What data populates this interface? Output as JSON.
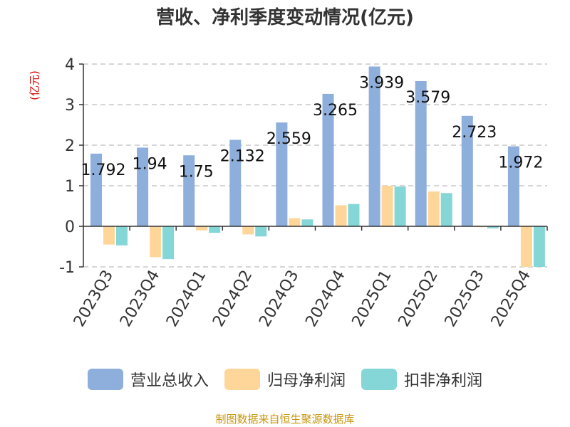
{
  "chart_title": "营收、净利季度变动情况(亿元)",
  "unit_label": "(亿元)",
  "source_note": "制图数据来自恒生聚源数据库",
  "colors": {
    "revenue": "#8eaedc",
    "parent_net_profit": "#ffd699",
    "deducted_net_profit": "#85d6d6",
    "grid": "#c8c8c8",
    "axis": "#333333"
  },
  "legend": [
    {
      "label": "营业总收入",
      "color": "#8eaedc"
    },
    {
      "label": "归母净利润",
      "color": "#ffd699"
    },
    {
      "label": "扣非净利润",
      "color": "#85d6d6"
    }
  ],
  "chart_data": {
    "type": "bar",
    "title": "营收、净利季度变动情况(亿元)",
    "ylabel": "(亿元)",
    "ylim": [
      -1,
      4
    ],
    "yticks": [
      4,
      3,
      2,
      1,
      0,
      -1
    ],
    "grid": true,
    "legend_position": "bottom",
    "categories": [
      "2023Q3",
      "2023Q4",
      "2024Q1",
      "2024Q2",
      "2024Q3",
      "2024Q4",
      "2025Q1",
      "2025Q2",
      "2025Q3",
      "2025Q4"
    ],
    "series": [
      {
        "name": "营业总收入",
        "values": [
          1.792,
          1.94,
          1.75,
          2.132,
          2.559,
          3.265,
          3.939,
          3.579,
          2.723,
          1.972
        ],
        "labels": [
          "1.792",
          "1.94",
          "1.75",
          "2.132",
          "2.559",
          "3.265",
          "3.939",
          "3.579",
          "2.723",
          "1.972"
        ]
      },
      {
        "name": "归母净利润",
        "values": [
          -0.45,
          -0.76,
          -0.1,
          -0.2,
          0.2,
          0.52,
          1.0,
          0.86,
          -0.02,
          -1.0
        ]
      },
      {
        "name": "扣非净利润",
        "values": [
          -0.47,
          -0.81,
          -0.16,
          -0.25,
          0.17,
          0.55,
          0.98,
          0.82,
          -0.05,
          -1.0
        ]
      }
    ]
  }
}
